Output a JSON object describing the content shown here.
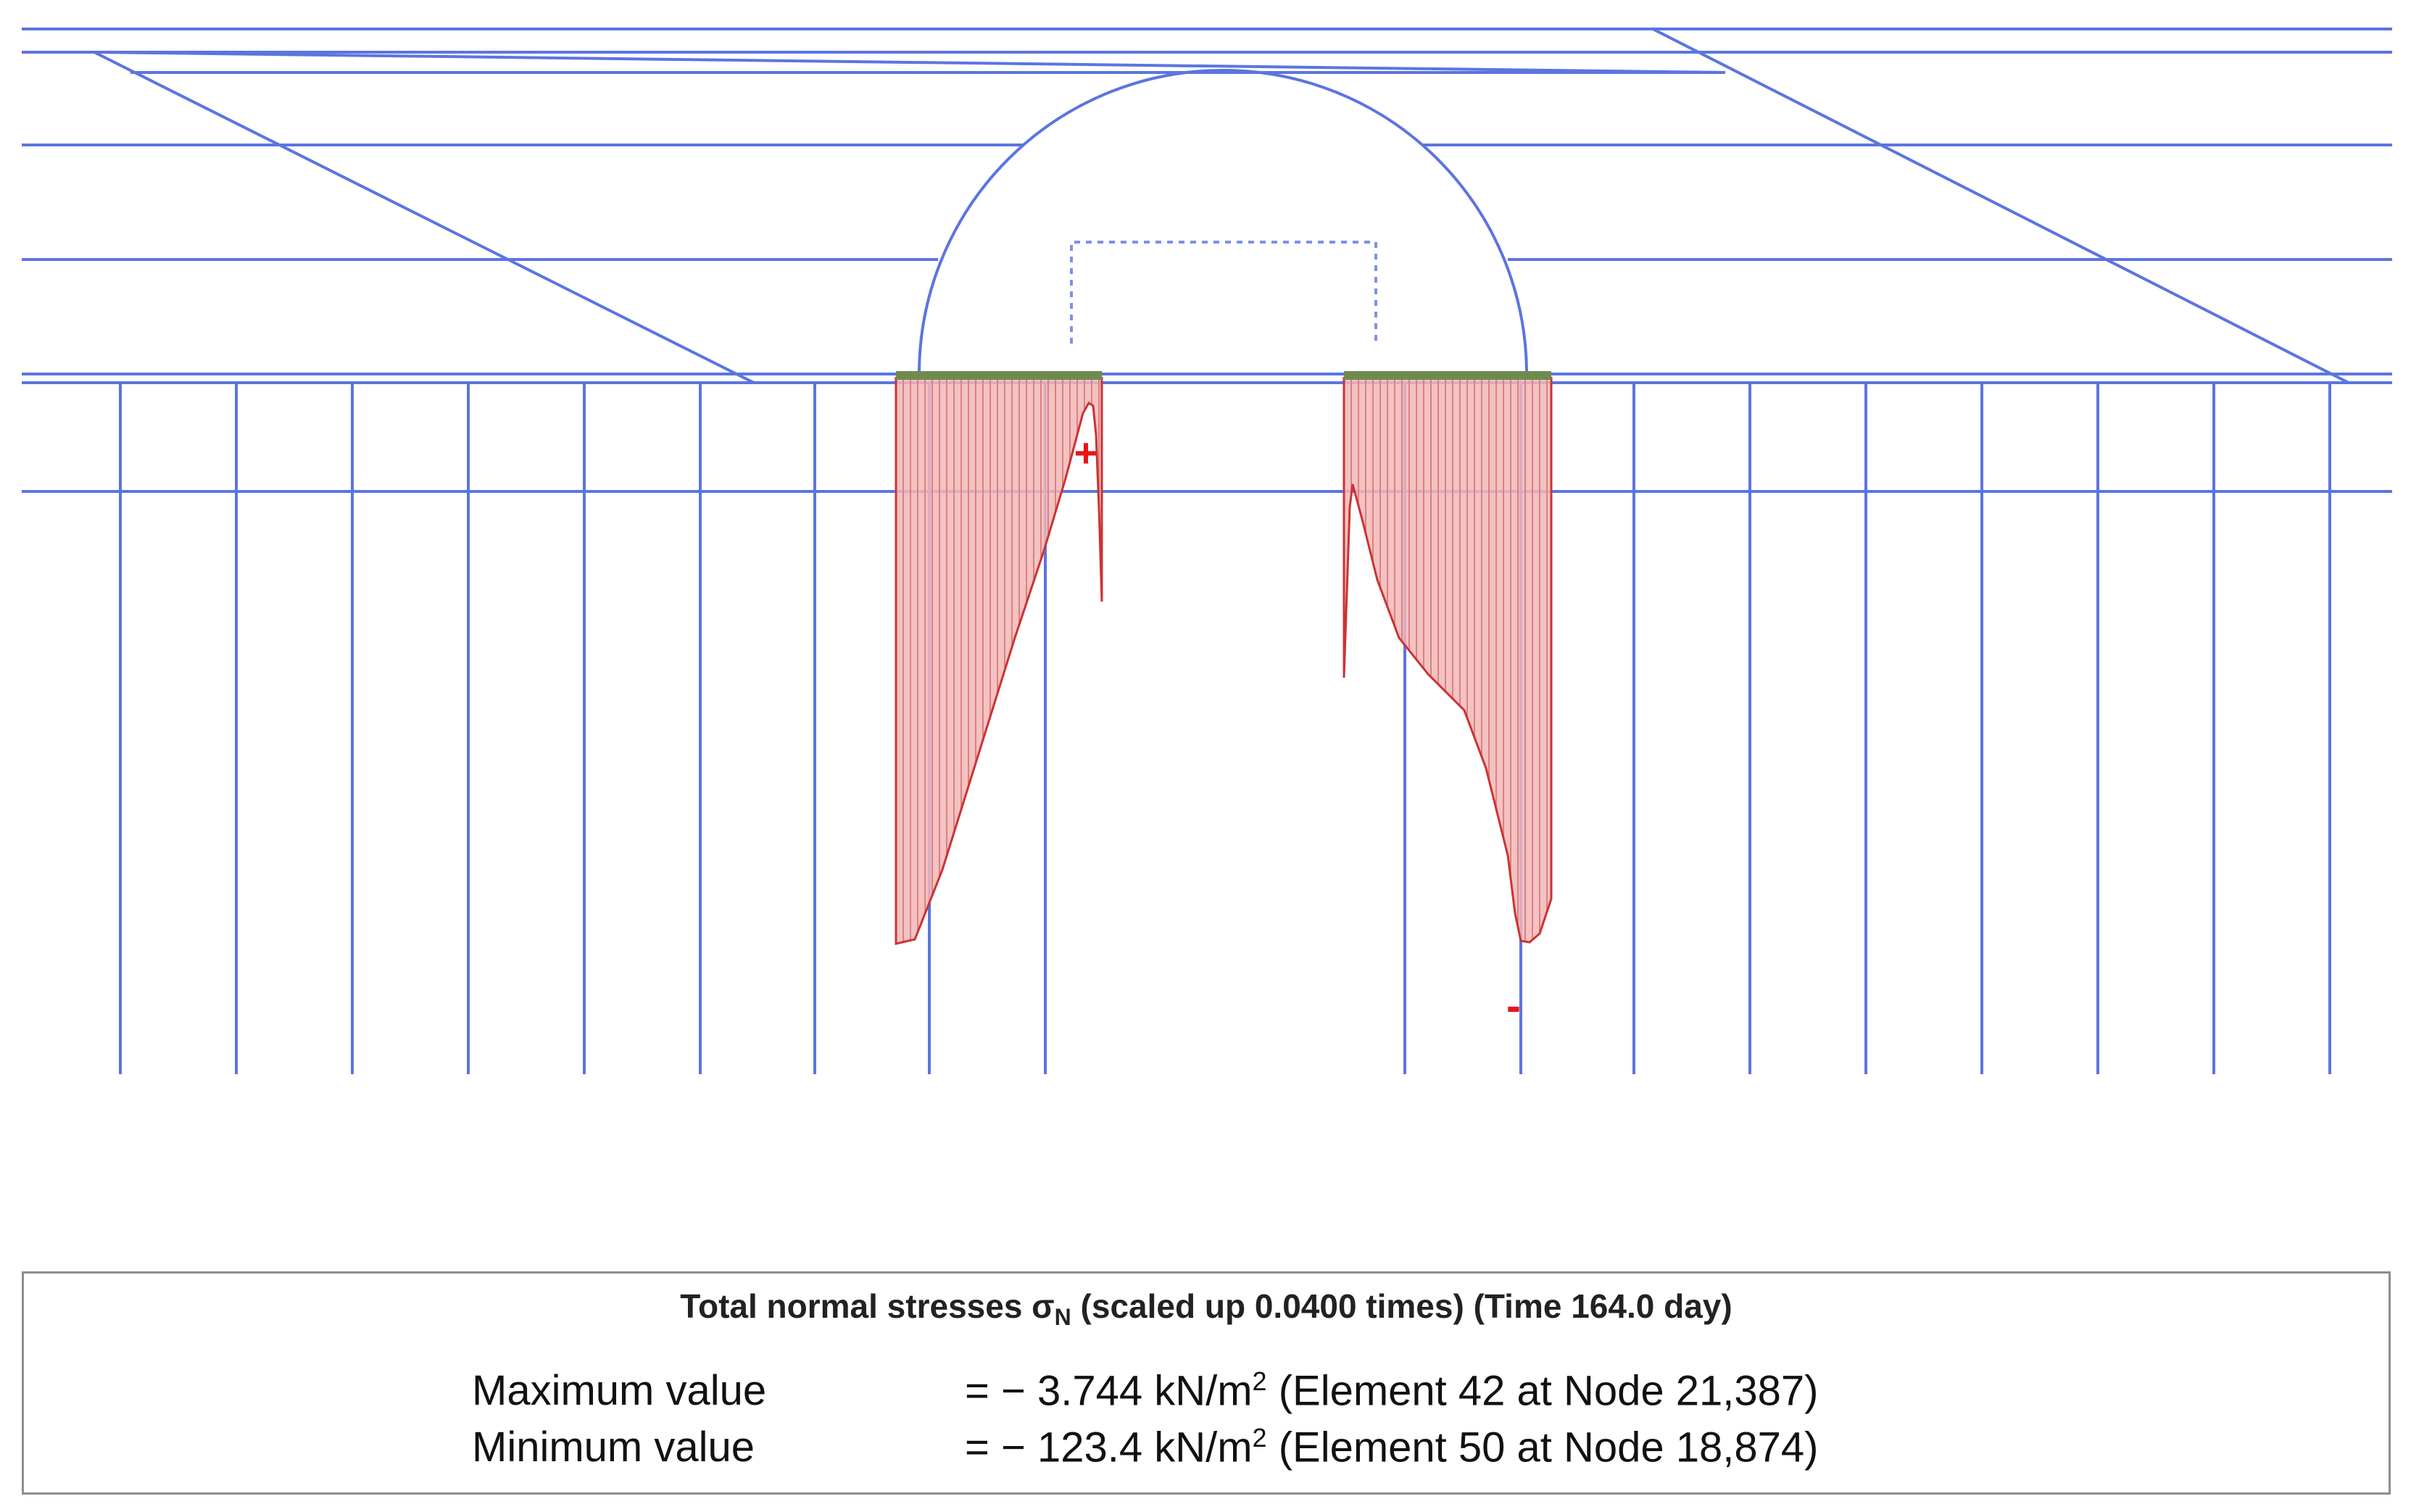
{
  "colors": {
    "mesh": "#5b75e0",
    "diagram_fill": "#f2b7b7",
    "diagram_hatch": "#dd8080",
    "diagram_outline": "#cc3333",
    "plate": "#6e8a4e",
    "marker": "#e8141a",
    "legend_border": "#8e8e8e"
  },
  "markers": {
    "max_symbol": "+",
    "min_symbol": "-"
  },
  "legend": {
    "title_main": "Total normal stresses σ",
    "title_sub": "N",
    "title_rest": " (scaled up 0.0400 times) (Time 164.0 day)",
    "max_label": "Maximum value",
    "max_value": "= − 3.744 kN/m",
    "max_unit_sup": "2",
    "max_location": " (Element 42 at Node 21,387)",
    "min_label": "Minimum value",
    "min_value": "= − 123.4 kN/m",
    "min_unit_sup": "2",
    "min_location": " (Element 50 at Node 18,874)"
  }
}
